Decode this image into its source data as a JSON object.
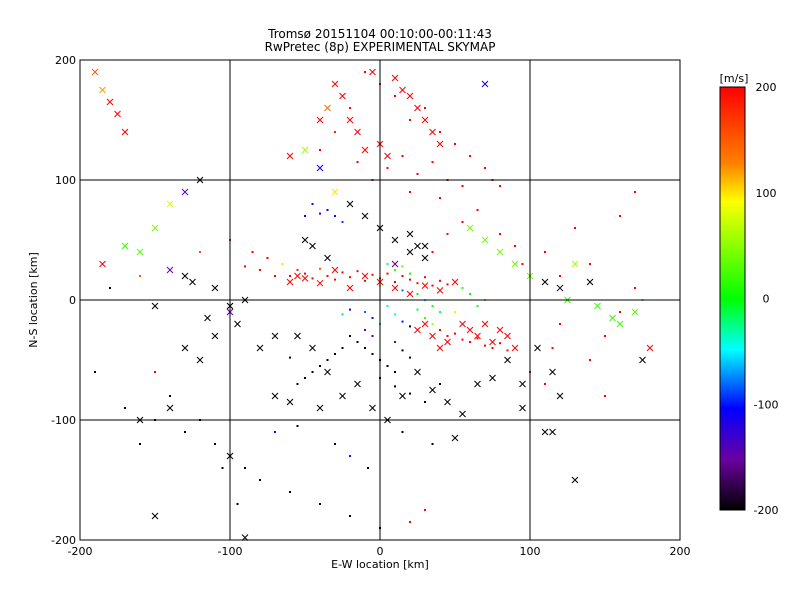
{
  "chart_data": {
    "type": "scatter",
    "title": "Tromsø 20151104 00:10:00-00:11:43",
    "subtitle": "RwPretec (8p) EXPERIMENTAL SKYMAP",
    "xlabel": "E-W location [km]",
    "ylabel": "N-S location [km]",
    "xlim": [
      -200,
      200
    ],
    "ylim": [
      -200,
      200
    ],
    "xticks": [
      "-200",
      "-100",
      "0",
      "100",
      "200"
    ],
    "yticks": [
      "-200",
      "-100",
      "0",
      "100",
      "200"
    ],
    "grid": true,
    "colorbar": {
      "unit": "[m/s]",
      "range": [
        -200,
        200
      ],
      "ticks": [
        "200",
        "100",
        "0",
        "-100",
        "-200"
      ],
      "colors": [
        "#ff0000",
        "#ff8000",
        "#ffff00",
        "#00ff00",
        "#00ffff",
        "#0000ff",
        "#8000a0",
        "#000000"
      ]
    },
    "markers": {
      "dot": "small point",
      "cross": "x"
    },
    "points_dot": [
      [
        -40,
        125,
        200
      ],
      [
        -30,
        140,
        180
      ],
      [
        -20,
        160,
        200
      ],
      [
        -10,
        190,
        200
      ],
      [
        0,
        180,
        200
      ],
      [
        10,
        170,
        200
      ],
      [
        20,
        150,
        200
      ],
      [
        30,
        160,
        200
      ],
      [
        40,
        140,
        200
      ],
      [
        50,
        130,
        200
      ],
      [
        60,
        120,
        200
      ],
      [
        70,
        110,
        200
      ],
      [
        75,
        100,
        200
      ],
      [
        80,
        95,
        200
      ],
      [
        5,
        110,
        200
      ],
      [
        15,
        120,
        200
      ],
      [
        25,
        105,
        200
      ],
      [
        35,
        115,
        200
      ],
      [
        45,
        100,
        200
      ],
      [
        55,
        95,
        200
      ],
      [
        -15,
        115,
        200
      ],
      [
        -5,
        100,
        200
      ],
      [
        20,
        90,
        200
      ],
      [
        40,
        85,
        200
      ],
      [
        -35,
        75,
        -110
      ],
      [
        -45,
        80,
        -120
      ],
      [
        -30,
        70,
        -100
      ],
      [
        -40,
        72,
        -130
      ],
      [
        -25,
        65,
        -90
      ],
      [
        -50,
        70,
        -110
      ],
      [
        -60,
        20,
        200
      ],
      [
        -55,
        25,
        180
      ],
      [
        -50,
        22,
        200
      ],
      [
        -45,
        18,
        200
      ],
      [
        -40,
        26,
        150
      ],
      [
        -35,
        20,
        200
      ],
      [
        -30,
        17,
        200
      ],
      [
        -25,
        23,
        200
      ],
      [
        -20,
        19,
        200
      ],
      [
        -15,
        24,
        200
      ],
      [
        -10,
        16,
        200
      ],
      [
        -5,
        21,
        200
      ],
      [
        0,
        18,
        200
      ],
      [
        5,
        22,
        200
      ],
      [
        10,
        15,
        200
      ],
      [
        15,
        20,
        200
      ],
      [
        20,
        17,
        200
      ],
      [
        25,
        14,
        200
      ],
      [
        30,
        19,
        200
      ],
      [
        35,
        12,
        200
      ],
      [
        40,
        16,
        200
      ],
      [
        45,
        13,
        200
      ],
      [
        10,
        25,
        20
      ],
      [
        15,
        28,
        30
      ],
      [
        20,
        22,
        10
      ],
      [
        5,
        30,
        -20
      ],
      [
        0,
        12,
        40
      ],
      [
        25,
        5,
        0
      ],
      [
        30,
        0,
        -50
      ],
      [
        -10,
        -10,
        -80
      ],
      [
        -5,
        -15,
        -120
      ],
      [
        0,
        -20,
        -60
      ],
      [
        5,
        -5,
        -30
      ],
      [
        10,
        -12,
        -40
      ],
      [
        15,
        -18,
        -100
      ],
      [
        20,
        -22,
        -200
      ],
      [
        25,
        -8,
        -10
      ],
      [
        30,
        -15,
        20
      ],
      [
        35,
        -20,
        60
      ],
      [
        40,
        -25,
        200
      ],
      [
        45,
        -30,
        200
      ],
      [
        50,
        -28,
        200
      ],
      [
        55,
        -33,
        200
      ],
      [
        60,
        -35,
        200
      ],
      [
        65,
        -32,
        200
      ],
      [
        70,
        -38,
        200
      ],
      [
        75,
        -40,
        200
      ],
      [
        80,
        -36,
        200
      ],
      [
        85,
        -42,
        200
      ],
      [
        -20,
        -30,
        -200
      ],
      [
        -15,
        -35,
        -200
      ],
      [
        -10,
        -40,
        -200
      ],
      [
        -5,
        -45,
        -200
      ],
      [
        0,
        -50,
        -200
      ],
      [
        5,
        -55,
        -200
      ],
      [
        10,
        -60,
        -200
      ],
      [
        15,
        -42,
        -200
      ],
      [
        20,
        -48,
        -200
      ],
      [
        -25,
        -40,
        -200
      ],
      [
        -30,
        -45,
        -200
      ],
      [
        -35,
        -50,
        -200
      ],
      [
        -40,
        -55,
        -200
      ],
      [
        -45,
        -60,
        -200
      ],
      [
        -50,
        -65,
        -200
      ],
      [
        -55,
        -70,
        -200
      ],
      [
        -60,
        -48,
        -200
      ],
      [
        0,
        -65,
        -200
      ],
      [
        10,
        -72,
        -200
      ],
      [
        20,
        -78,
        -200
      ],
      [
        30,
        -85,
        -200
      ],
      [
        40,
        -70,
        -200
      ],
      [
        -5,
        -30,
        -160
      ],
      [
        10,
        -35,
        -150
      ],
      [
        -10,
        -25,
        -140
      ],
      [
        -100,
        50,
        180
      ],
      [
        -120,
        40,
        160
      ],
      [
        -160,
        20,
        150
      ],
      [
        -180,
        10,
        -200
      ],
      [
        -150,
        -60,
        200
      ],
      [
        -140,
        -80,
        -200
      ],
      [
        -130,
        -110,
        -200
      ],
      [
        -120,
        -100,
        -200
      ],
      [
        -110,
        -120,
        -200
      ],
      [
        -100,
        -130,
        -200
      ],
      [
        -90,
        -140,
        -200
      ],
      [
        -80,
        -150,
        -200
      ],
      [
        -60,
        -160,
        -200
      ],
      [
        -40,
        -170,
        -200
      ],
      [
        -20,
        -180,
        -200
      ],
      [
        0,
        -190,
        -200
      ],
      [
        20,
        -185,
        200
      ],
      [
        30,
        -175,
        200
      ],
      [
        -95,
        -170,
        -200
      ],
      [
        -105,
        -140,
        -200
      ],
      [
        -70,
        -110,
        -120
      ],
      [
        -55,
        -105,
        -200
      ],
      [
        -30,
        -120,
        -200
      ],
      [
        -20,
        -130,
        -100
      ],
      [
        -8,
        -140,
        -200
      ],
      [
        15,
        -110,
        -200
      ],
      [
        35,
        -120,
        -200
      ],
      [
        -150,
        -100,
        -200
      ],
      [
        -160,
        -120,
        -200
      ],
      [
        -170,
        -90,
        -200
      ],
      [
        -190,
        -60,
        -200
      ],
      [
        100,
        -60,
        200
      ],
      [
        110,
        -70,
        200
      ],
      [
        115,
        -40,
        200
      ],
      [
        120,
        -20,
        200
      ],
      [
        140,
        -50,
        200
      ],
      [
        150,
        -30,
        200
      ],
      [
        160,
        -10,
        200
      ],
      [
        170,
        10,
        200
      ],
      [
        175,
        0,
        -20
      ],
      [
        150,
        -80,
        200
      ],
      [
        140,
        30,
        200
      ],
      [
        120,
        20,
        200
      ],
      [
        110,
        40,
        200
      ],
      [
        130,
        60,
        200
      ],
      [
        160,
        70,
        200
      ],
      [
        170,
        90,
        200
      ],
      [
        -65,
        30,
        100
      ],
      [
        -80,
        25,
        200
      ],
      [
        -75,
        35,
        200
      ],
      [
        -90,
        28,
        200
      ],
      [
        -85,
        40,
        200
      ],
      [
        -70,
        20,
        200
      ],
      [
        35,
        40,
        200
      ],
      [
        45,
        55,
        200
      ],
      [
        55,
        65,
        200
      ],
      [
        65,
        75,
        200
      ],
      [
        80,
        55,
        200
      ],
      [
        90,
        45,
        200
      ],
      [
        95,
        30,
        200
      ],
      [
        100,
        20,
        200
      ],
      [
        55,
        10,
        20
      ],
      [
        60,
        5,
        0
      ],
      [
        65,
        -5,
        -10
      ],
      [
        70,
        0,
        30
      ],
      [
        50,
        -10,
        80
      ],
      [
        35,
        -5,
        10
      ],
      [
        40,
        -10,
        -20
      ],
      [
        20,
        5,
        -40
      ],
      [
        15,
        8,
        -80
      ],
      [
        -20,
        -8,
        -100
      ],
      [
        -25,
        -12,
        -60
      ]
    ],
    "points_cross": [
      [
        -185,
        175,
        120
      ],
      [
        -180,
        165,
        200
      ],
      [
        -175,
        155,
        200
      ],
      [
        -170,
        140,
        200
      ],
      [
        -190,
        190,
        150
      ],
      [
        -5,
        190,
        200
      ],
      [
        10,
        185,
        200
      ],
      [
        15,
        175,
        200
      ],
      [
        20,
        170,
        200
      ],
      [
        25,
        160,
        200
      ],
      [
        30,
        150,
        200
      ],
      [
        35,
        140,
        200
      ],
      [
        40,
        130,
        200
      ],
      [
        -30,
        180,
        200
      ],
      [
        -25,
        170,
        200
      ],
      [
        -20,
        150,
        200
      ],
      [
        -15,
        140,
        200
      ],
      [
        0,
        130,
        200
      ],
      [
        5,
        120,
        200
      ],
      [
        -10,
        125,
        200
      ],
      [
        -35,
        160,
        140
      ],
      [
        -40,
        150,
        200
      ],
      [
        70,
        180,
        -110
      ],
      [
        -40,
        110,
        -110
      ],
      [
        -50,
        125,
        60
      ],
      [
        -60,
        120,
        200
      ],
      [
        -120,
        100,
        -200
      ],
      [
        -130,
        90,
        -150
      ],
      [
        -140,
        80,
        80
      ],
      [
        -150,
        60,
        40
      ],
      [
        -160,
        40,
        30
      ],
      [
        -170,
        45,
        20
      ],
      [
        -185,
        30,
        200
      ],
      [
        -140,
        25,
        -150
      ],
      [
        -130,
        20,
        -200
      ],
      [
        -125,
        15,
        -200
      ],
      [
        -110,
        10,
        -200
      ],
      [
        -150,
        -5,
        -200
      ],
      [
        -115,
        -15,
        -200
      ],
      [
        -110,
        -30,
        -200
      ],
      [
        -100,
        -10,
        -150
      ],
      [
        -95,
        -20,
        -200
      ],
      [
        -55,
        -30,
        -200
      ],
      [
        -45,
        -40,
        -200
      ],
      [
        -35,
        -60,
        -200
      ],
      [
        -25,
        -80,
        -200
      ],
      [
        -15,
        -70,
        -200
      ],
      [
        -5,
        -90,
        -200
      ],
      [
        5,
        -100,
        -200
      ],
      [
        15,
        -80,
        -200
      ],
      [
        25,
        -60,
        -200
      ],
      [
        35,
        -75,
        -200
      ],
      [
        45,
        -85,
        -200
      ],
      [
        55,
        -95,
        -200
      ],
      [
        65,
        -70,
        -200
      ],
      [
        75,
        -65,
        -200
      ],
      [
        85,
        -50,
        -200
      ],
      [
        95,
        -70,
        -200
      ],
      [
        105,
        -40,
        -200
      ],
      [
        115,
        -60,
        -200
      ],
      [
        120,
        -80,
        -200
      ],
      [
        95,
        -90,
        -200
      ],
      [
        50,
        -115,
        -200
      ],
      [
        110,
        -110,
        -200
      ],
      [
        115,
        -110,
        -200
      ],
      [
        130,
        -150,
        -200
      ],
      [
        175,
        -50,
        -200
      ],
      [
        -90,
        -198,
        -200
      ],
      [
        -100,
        -130,
        -200
      ],
      [
        -150,
        -180,
        -200
      ],
      [
        -50,
        50,
        -200
      ],
      [
        -45,
        45,
        -200
      ],
      [
        -35,
        35,
        -200
      ],
      [
        20,
        40,
        -200
      ],
      [
        25,
        45,
        -200
      ],
      [
        30,
        35,
        -200
      ],
      [
        10,
        30,
        -160
      ],
      [
        -60,
        15,
        200
      ],
      [
        -55,
        20,
        200
      ],
      [
        -50,
        18,
        200
      ],
      [
        -40,
        14,
        200
      ],
      [
        -30,
        25,
        200
      ],
      [
        -20,
        10,
        200
      ],
      [
        -10,
        20,
        200
      ],
      [
        0,
        15,
        200
      ],
      [
        10,
        10,
        200
      ],
      [
        20,
        5,
        200
      ],
      [
        30,
        12,
        200
      ],
      [
        40,
        8,
        200
      ],
      [
        50,
        15,
        200
      ],
      [
        55,
        -20,
        200
      ],
      [
        60,
        -25,
        200
      ],
      [
        65,
        -30,
        200
      ],
      [
        70,
        -20,
        200
      ],
      [
        75,
        -35,
        200
      ],
      [
        80,
        -25,
        200
      ],
      [
        85,
        -30,
        200
      ],
      [
        90,
        -40,
        200
      ],
      [
        45,
        -35,
        200
      ],
      [
        40,
        -40,
        200
      ],
      [
        35,
        -30,
        200
      ],
      [
        30,
        -20,
        200
      ],
      [
        25,
        -25,
        200
      ],
      [
        60,
        60,
        40
      ],
      [
        70,
        50,
        40
      ],
      [
        80,
        40,
        40
      ],
      [
        90,
        30,
        40
      ],
      [
        100,
        20,
        40
      ],
      [
        110,
        15,
        -200
      ],
      [
        120,
        10,
        -180
      ],
      [
        125,
        0,
        20
      ],
      [
        140,
        15,
        -200
      ],
      [
        145,
        -5,
        20
      ],
      [
        155,
        -15,
        20
      ],
      [
        160,
        -20,
        20
      ],
      [
        170,
        -10,
        30
      ],
      [
        180,
        -40,
        200
      ],
      [
        130,
        30,
        60
      ],
      [
        -30,
        90,
        100
      ],
      [
        -20,
        80,
        -200
      ],
      [
        -10,
        70,
        -200
      ],
      [
        0,
        60,
        -200
      ],
      [
        10,
        50,
        -200
      ],
      [
        20,
        55,
        -200
      ],
      [
        30,
        45,
        -200
      ],
      [
        -80,
        -40,
        -200
      ],
      [
        -70,
        -30,
        -200
      ],
      [
        -90,
        0,
        -200
      ],
      [
        -100,
        -5,
        -200
      ],
      [
        -130,
        -40,
        -200
      ],
      [
        -120,
        -50,
        -200
      ],
      [
        -140,
        -90,
        -200
      ],
      [
        -160,
        -100,
        -200
      ],
      [
        -70,
        -80,
        -200
      ],
      [
        -60,
        -85,
        -200
      ],
      [
        -40,
        -90,
        -200
      ]
    ]
  }
}
